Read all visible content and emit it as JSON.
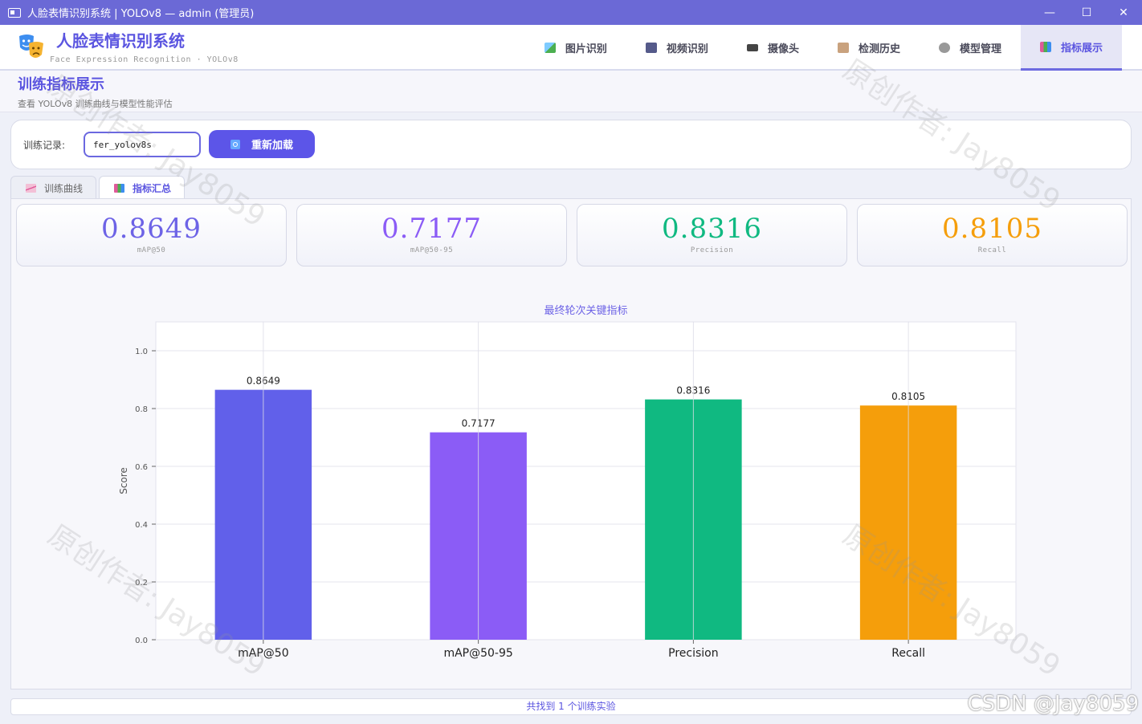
{
  "window": {
    "title": "人脸表情识别系统 | YOLOv8 — admin (管理员)",
    "buttons": [
      "—",
      "☐",
      "✕"
    ]
  },
  "brand": {
    "title": "人脸表情识别系统",
    "subtitle": "Face Expression Recognition  ·  YOLOv8"
  },
  "nav": [
    {
      "label": "图片识别",
      "icon": "image-icon",
      "color": "#4caf50"
    },
    {
      "label": "视频识别",
      "icon": "video-icon",
      "color": "#555a8a"
    },
    {
      "label": "摄像头",
      "icon": "camera-icon",
      "color": "#444"
    },
    {
      "label": "检测历史",
      "icon": "history-icon",
      "color": "#b08060"
    },
    {
      "label": "模型管理",
      "icon": "gear-icon",
      "color": "#888"
    },
    {
      "label": "指标展示",
      "icon": "chart-icon",
      "color": "#e05a9a"
    }
  ],
  "page": {
    "title": "训练指标展示",
    "subtitle": "查看 YOLOv8 训练曲线与模型性能评估"
  },
  "toolbar": {
    "record_label": "训练记录:",
    "record_value": "fer_yolov8s",
    "reload_label": "重新加载"
  },
  "tabs": [
    {
      "label": "训练曲线",
      "icon": "line-chart-icon"
    },
    {
      "label": "指标汇总",
      "icon": "bar-chart-icon"
    }
  ],
  "metrics": [
    {
      "value": "0.8649",
      "name": "mAP@50",
      "color": "#6d63e6"
    },
    {
      "value": "0.7177",
      "name": "mAP@50-95",
      "color": "#8b5cf6"
    },
    {
      "value": "0.8316",
      "name": "Precision",
      "color": "#10b981"
    },
    {
      "value": "0.8105",
      "name": "Recall",
      "color": "#f59e0b"
    }
  ],
  "chart_data": {
    "type": "bar",
    "title": "最终轮次关键指标",
    "xlabel": "",
    "ylabel": "Score",
    "categories": [
      "mAP@50",
      "mAP@50-95",
      "Precision",
      "Recall"
    ],
    "values": [
      0.8649,
      0.7177,
      0.8316,
      0.8105
    ],
    "value_labels": [
      "0.8649",
      "0.7177",
      "0.8316",
      "0.8105"
    ],
    "colors": [
      "#6160ea",
      "#8b5cf6",
      "#10b981",
      "#f59e0b"
    ],
    "ylim": [
      0,
      1.1
    ],
    "yticks": [
      "0.0",
      "0.2",
      "0.4",
      "0.6",
      "0.8",
      "1.0"
    ],
    "grid": true
  },
  "status": "共找到 1 个训练实验",
  "watermark": "原创作者: Jay8059",
  "csdn": "CSDN @Jay8059"
}
